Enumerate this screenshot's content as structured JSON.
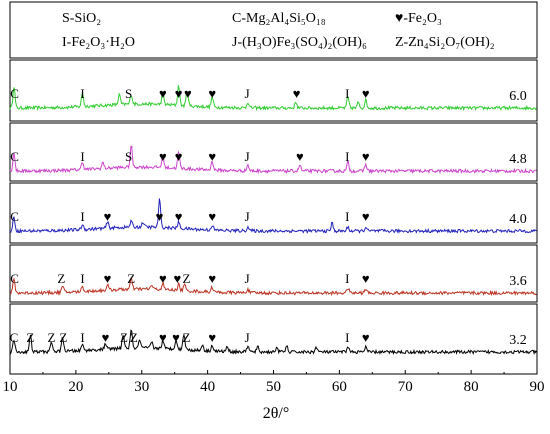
{
  "chart_data": {
    "type": "line",
    "xlabel": "2θ/°",
    "xlim": [
      10,
      90
    ],
    "xticks": [
      10,
      20,
      30,
      40,
      50,
      60,
      70,
      80,
      90
    ],
    "grid": false,
    "legend_entries": [
      {
        "key": "S",
        "text": "S-SiO₂"
      },
      {
        "key": "C",
        "text": "C-Mg₂Al₄Si₅O₁₈"
      },
      {
        "key": "heart",
        "text": "♥-Fe₂O₃"
      },
      {
        "key": "I",
        "text": "I-Fe₂O₃·H₂O"
      },
      {
        "key": "J",
        "text": "J-(H₃O)Fe₃(SO₄)₂(OH)₆"
      },
      {
        "key": "Z",
        "text": "Z-Zn₄Si₂O₇(OH)₂"
      }
    ],
    "panels": [
      {
        "ph": "6.0",
        "color": "#33cc33",
        "peaks": [
          [
            10.6,
            22
          ],
          [
            21.0,
            14
          ],
          [
            26.6,
            10
          ],
          [
            28.4,
            10
          ],
          [
            33.2,
            12
          ],
          [
            35.6,
            20
          ],
          [
            36.9,
            16
          ],
          [
            40.7,
            10
          ],
          [
            46.1,
            6
          ],
          [
            53.4,
            6
          ],
          [
            61.3,
            11
          ],
          [
            62.9,
            6
          ],
          [
            64.0,
            8
          ]
        ],
        "labels": [
          {
            "t": "C",
            "x": 10.7
          },
          {
            "t": "I",
            "x": 21.0
          },
          {
            "t": "S",
            "x": 28.0
          },
          {
            "t": "♥",
            "x": 33.2
          },
          {
            "t": "♥",
            "x": 35.6
          },
          {
            "t": "♥",
            "x": 37.0
          },
          {
            "t": "♥",
            "x": 40.7
          },
          {
            "t": "J",
            "x": 46.0
          },
          {
            "t": "♥",
            "x": 53.5
          },
          {
            "t": "I",
            "x": 61.2
          },
          {
            "t": "♥",
            "x": 64.0
          }
        ]
      },
      {
        "ph": "4.8",
        "color": "#cc44cc",
        "peaks": [
          [
            10.6,
            18
          ],
          [
            21.0,
            8
          ],
          [
            24.1,
            6
          ],
          [
            28.4,
            22
          ],
          [
            33.2,
            12
          ],
          [
            35.6,
            16
          ],
          [
            40.7,
            9
          ],
          [
            46.1,
            6
          ],
          [
            54.0,
            6
          ],
          [
            61.3,
            9
          ],
          [
            64.0,
            7
          ]
        ],
        "labels": [
          {
            "t": "C",
            "x": 10.7
          },
          {
            "t": "I",
            "x": 21.0
          },
          {
            "t": "S",
            "x": 28.0
          },
          {
            "t": "♥",
            "x": 33.2
          },
          {
            "t": "♥",
            "x": 35.6
          },
          {
            "t": "♥",
            "x": 40.7
          },
          {
            "t": "J",
            "x": 46.0
          },
          {
            "t": "♥",
            "x": 54.0
          },
          {
            "t": "I",
            "x": 61.2
          },
          {
            "t": "♥",
            "x": 64.0
          }
        ]
      },
      {
        "ph": "4.0",
        "color": "#2222bb",
        "peaks": [
          [
            10.6,
            14
          ],
          [
            21.0,
            5
          ],
          [
            24.8,
            6
          ],
          [
            28.4,
            6
          ],
          [
            30.2,
            5
          ],
          [
            32.7,
            28
          ],
          [
            35.6,
            6
          ],
          [
            40.7,
            5
          ],
          [
            46.1,
            4
          ],
          [
            58.9,
            8
          ],
          [
            61.3,
            4
          ],
          [
            64.0,
            4
          ]
        ],
        "labels": [
          {
            "t": "C",
            "x": 10.7
          },
          {
            "t": "I",
            "x": 21.0
          },
          {
            "t": "♥",
            "x": 24.8
          },
          {
            "t": "♥",
            "x": 32.7
          },
          {
            "t": "♥",
            "x": 35.6
          },
          {
            "t": "♥",
            "x": 40.7
          },
          {
            "t": "J",
            "x": 46.0
          },
          {
            "t": "I",
            "x": 61.2
          },
          {
            "t": "♥",
            "x": 64.0
          }
        ]
      },
      {
        "ph": "3.6",
        "color": "#bb3322",
        "peaks": [
          [
            10.6,
            14
          ],
          [
            18.0,
            6
          ],
          [
            21.0,
            5
          ],
          [
            24.8,
            5
          ],
          [
            28.4,
            10
          ],
          [
            31.5,
            4
          ],
          [
            33.2,
            6
          ],
          [
            35.6,
            6
          ],
          [
            36.5,
            6
          ],
          [
            40.7,
            5
          ],
          [
            46.1,
            4
          ],
          [
            61.3,
            5
          ],
          [
            64.0,
            4
          ]
        ],
        "labels": [
          {
            "t": "C",
            "x": 10.7
          },
          {
            "t": "Z",
            "x": 17.8
          },
          {
            "t": "I",
            "x": 21.0
          },
          {
            "t": "♥",
            "x": 24.8
          },
          {
            "t": "Z",
            "x": 28.4
          },
          {
            "t": "♥",
            "x": 33.2
          },
          {
            "t": "♥",
            "x": 35.4
          },
          {
            "t": "Z",
            "x": 36.8
          },
          {
            "t": "♥",
            "x": 40.7
          },
          {
            "t": "J",
            "x": 46.0
          },
          {
            "t": "I",
            "x": 61.2
          },
          {
            "t": "♥",
            "x": 64.0
          }
        ]
      },
      {
        "ph": "3.2",
        "color": "#000000",
        "peaks": [
          [
            10.6,
            12
          ],
          [
            13.1,
            16
          ],
          [
            16.3,
            10
          ],
          [
            18.0,
            14
          ],
          [
            21.0,
            6
          ],
          [
            24.5,
            6
          ],
          [
            27.2,
            14
          ],
          [
            28.4,
            18
          ],
          [
            29.7,
            8
          ],
          [
            31.5,
            6
          ],
          [
            33.2,
            8
          ],
          [
            35.2,
            10
          ],
          [
            36.4,
            16
          ],
          [
            39.2,
            6
          ],
          [
            40.7,
            6
          ],
          [
            43.0,
            5
          ],
          [
            46.1,
            6
          ],
          [
            47.6,
            5
          ],
          [
            50.5,
            5
          ],
          [
            52.0,
            6
          ],
          [
            56.5,
            5
          ],
          [
            61.3,
            6
          ],
          [
            64.0,
            5
          ]
        ],
        "labels": [
          {
            "t": "C",
            "x": 10.6
          },
          {
            "t": "Z",
            "x": 13.1
          },
          {
            "t": "Z",
            "x": 16.3
          },
          {
            "t": "Z",
            "x": 18.1
          },
          {
            "t": "I",
            "x": 21.0
          },
          {
            "t": "♥",
            "x": 24.5
          },
          {
            "t": "Z",
            "x": 27.3
          },
          {
            "t": "Z",
            "x": 28.8
          },
          {
            "t": "♥",
            "x": 33.2
          },
          {
            "t": "♥",
            "x": 35.2
          },
          {
            "t": "Z",
            "x": 36.8
          },
          {
            "t": "♥",
            "x": 40.7
          },
          {
            "t": "J",
            "x": 46.0
          },
          {
            "t": "I",
            "x": 61.2
          },
          {
            "t": "♥",
            "x": 64.0
          }
        ]
      }
    ]
  }
}
